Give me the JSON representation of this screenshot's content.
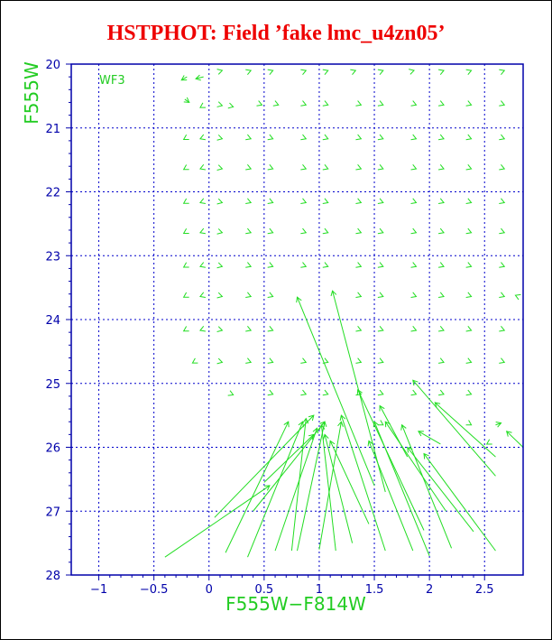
{
  "title": "HSTPHOT: Field ’fake lmc_u4zn05’",
  "colors": {
    "title": "#ee0000",
    "axis": "#0000aa",
    "label": "#22cc22",
    "vector": "#22dd22",
    "grid": "#0000cc"
  },
  "chart_data": {
    "type": "vector",
    "title": "HSTPHOT: Field ’fake lmc_u4zn05’",
    "annotation": "WF3",
    "xlabel": "F555W−F814W",
    "ylabel": "F555W",
    "xlim": [
      -1.25,
      2.85
    ],
    "ylim": [
      28,
      20
    ],
    "y_inverted": true,
    "grid": true,
    "x_ticks": [
      "−1",
      "−0.5",
      "0",
      "0.5",
      "1",
      "1.5",
      "2",
      "2.5"
    ],
    "x_tick_values": [
      -1,
      -0.5,
      0,
      0.5,
      1,
      1.5,
      2,
      2.5
    ],
    "y_ticks": [
      "20",
      "21",
      "22",
      "23",
      "24",
      "25",
      "26",
      "27",
      "28"
    ],
    "y_tick_values": [
      20,
      21,
      22,
      23,
      24,
      25,
      26,
      27,
      28
    ],
    "grid_x": [
      -1,
      -0.5,
      0,
      0.5,
      1,
      1.5,
      2,
      2.5
    ],
    "grid_y": [
      21,
      22,
      23,
      24,
      25,
      26,
      27
    ],
    "short_vectors": [
      [
        -0.2,
        20.2,
        -0.25,
        20.25
      ],
      [
        -0.05,
        20.2,
        -0.12,
        20.23
      ],
      [
        0.08,
        20.12,
        0.12,
        20.1
      ],
      [
        0.35,
        20.12,
        0.38,
        20.1
      ],
      [
        0.55,
        20.12,
        0.58,
        20.1
      ],
      [
        0.85,
        20.12,
        0.88,
        20.1
      ],
      [
        1.05,
        20.12,
        1.08,
        20.1
      ],
      [
        1.3,
        20.12,
        1.33,
        20.1
      ],
      [
        1.55,
        20.12,
        1.58,
        20.1
      ],
      [
        1.82,
        20.12,
        1.86,
        20.1
      ],
      [
        2.1,
        20.12,
        2.13,
        20.1
      ],
      [
        2.35,
        20.12,
        2.38,
        20.1
      ],
      [
        2.65,
        20.12,
        2.68,
        20.1
      ],
      [
        -0.22,
        20.55,
        -0.18,
        20.6
      ],
      [
        -0.05,
        20.65,
        -0.08,
        20.68
      ],
      [
        0.08,
        20.63,
        0.12,
        20.65
      ],
      [
        0.18,
        20.65,
        0.22,
        20.67
      ],
      [
        0.45,
        20.62,
        0.48,
        20.64
      ],
      [
        0.6,
        20.62,
        0.63,
        20.64
      ],
      [
        0.85,
        20.62,
        0.88,
        20.64
      ],
      [
        1.05,
        20.62,
        1.08,
        20.64
      ],
      [
        1.35,
        20.62,
        1.38,
        20.64
      ],
      [
        1.55,
        20.62,
        1.58,
        20.64
      ],
      [
        1.85,
        20.62,
        1.88,
        20.64
      ],
      [
        2.1,
        20.62,
        2.13,
        20.64
      ],
      [
        2.35,
        20.62,
        2.38,
        20.64
      ],
      [
        2.65,
        20.62,
        2.68,
        20.64
      ],
      [
        -0.2,
        21.15,
        -0.23,
        21.18
      ],
      [
        -0.05,
        21.15,
        -0.08,
        21.17
      ],
      [
        0.08,
        21.15,
        0.12,
        21.17
      ],
      [
        0.35,
        21.15,
        0.38,
        21.17
      ],
      [
        0.55,
        21.15,
        0.58,
        21.17
      ],
      [
        0.85,
        21.15,
        0.88,
        21.17
      ],
      [
        1.05,
        21.15,
        1.08,
        21.17
      ],
      [
        1.35,
        21.15,
        1.38,
        21.17
      ],
      [
        1.55,
        21.15,
        1.58,
        21.17
      ],
      [
        1.85,
        21.15,
        1.88,
        21.17
      ],
      [
        2.1,
        21.15,
        2.13,
        21.17
      ],
      [
        2.35,
        21.15,
        2.38,
        21.17
      ],
      [
        2.65,
        21.15,
        2.68,
        21.17
      ],
      [
        -0.2,
        21.62,
        -0.23,
        21.65
      ],
      [
        -0.05,
        21.62,
        -0.08,
        21.64
      ],
      [
        0.08,
        21.62,
        0.12,
        21.64
      ],
      [
        0.35,
        21.62,
        0.38,
        21.64
      ],
      [
        0.55,
        21.62,
        0.58,
        21.64
      ],
      [
        0.85,
        21.62,
        0.88,
        21.64
      ],
      [
        1.05,
        21.62,
        1.08,
        21.64
      ],
      [
        1.35,
        21.62,
        1.38,
        21.64
      ],
      [
        1.55,
        21.62,
        1.58,
        21.64
      ],
      [
        1.85,
        21.62,
        1.88,
        21.64
      ],
      [
        2.1,
        21.62,
        2.13,
        21.64
      ],
      [
        2.35,
        21.62,
        2.38,
        21.64
      ],
      [
        2.65,
        21.62,
        2.68,
        21.64
      ],
      [
        -0.2,
        22.15,
        -0.23,
        22.18
      ],
      [
        -0.05,
        22.15,
        -0.08,
        22.17
      ],
      [
        0.08,
        22.15,
        0.12,
        22.17
      ],
      [
        0.35,
        22.15,
        0.38,
        22.17
      ],
      [
        0.55,
        22.15,
        0.58,
        22.17
      ],
      [
        0.85,
        22.15,
        0.88,
        22.17
      ],
      [
        1.05,
        22.15,
        1.08,
        22.17
      ],
      [
        1.35,
        22.15,
        1.38,
        22.17
      ],
      [
        1.55,
        22.15,
        1.58,
        22.17
      ],
      [
        1.85,
        22.15,
        1.88,
        22.17
      ],
      [
        2.1,
        22.15,
        2.13,
        22.17
      ],
      [
        2.35,
        22.15,
        2.38,
        22.17
      ],
      [
        2.65,
        22.15,
        2.68,
        22.17
      ],
      [
        -0.2,
        22.62,
        -0.23,
        22.65
      ],
      [
        -0.05,
        22.62,
        -0.08,
        22.64
      ],
      [
        0.08,
        22.62,
        0.12,
        22.64
      ],
      [
        0.35,
        22.62,
        0.38,
        22.64
      ],
      [
        0.55,
        22.62,
        0.58,
        22.64
      ],
      [
        0.85,
        22.62,
        0.88,
        22.64
      ],
      [
        1.05,
        22.62,
        1.08,
        22.64
      ],
      [
        1.35,
        22.62,
        1.38,
        22.64
      ],
      [
        1.55,
        22.62,
        1.58,
        22.64
      ],
      [
        1.85,
        22.62,
        1.88,
        22.64
      ],
      [
        2.1,
        22.62,
        2.13,
        22.64
      ],
      [
        2.35,
        22.62,
        2.38,
        22.64
      ],
      [
        2.65,
        22.62,
        2.68,
        22.64
      ],
      [
        -0.2,
        23.15,
        -0.23,
        23.18
      ],
      [
        -0.05,
        23.15,
        -0.08,
        23.17
      ],
      [
        0.08,
        23.15,
        0.12,
        23.17
      ],
      [
        0.35,
        23.15,
        0.38,
        23.17
      ],
      [
        0.55,
        23.15,
        0.58,
        23.17
      ],
      [
        0.85,
        23.15,
        0.88,
        23.17
      ],
      [
        1.05,
        23.15,
        1.08,
        23.17
      ],
      [
        1.35,
        23.15,
        1.38,
        23.17
      ],
      [
        1.55,
        23.15,
        1.58,
        23.17
      ],
      [
        1.85,
        23.15,
        1.88,
        23.17
      ],
      [
        2.1,
        23.15,
        2.13,
        23.17
      ],
      [
        2.35,
        23.15,
        2.38,
        23.17
      ],
      [
        2.65,
        23.15,
        2.68,
        23.17
      ],
      [
        -0.2,
        23.62,
        -0.23,
        23.65
      ],
      [
        -0.05,
        23.62,
        -0.08,
        23.64
      ],
      [
        0.08,
        23.62,
        0.12,
        23.64
      ],
      [
        0.35,
        23.62,
        0.38,
        23.64
      ],
      [
        0.55,
        23.62,
        0.58,
        23.64
      ],
      [
        1.35,
        23.62,
        1.38,
        23.64
      ],
      [
        1.55,
        23.62,
        1.58,
        23.64
      ],
      [
        1.85,
        23.62,
        1.88,
        23.64
      ],
      [
        2.1,
        23.62,
        2.13,
        23.64
      ],
      [
        2.35,
        23.62,
        2.38,
        23.64
      ],
      [
        2.65,
        23.62,
        2.68,
        23.64
      ],
      [
        2.82,
        23.65,
        2.78,
        23.62
      ],
      [
        -0.2,
        24.15,
        -0.23,
        24.18
      ],
      [
        -0.05,
        24.15,
        -0.08,
        24.17
      ],
      [
        0.08,
        24.15,
        0.12,
        24.17
      ],
      [
        0.35,
        24.15,
        0.38,
        24.17
      ],
      [
        0.55,
        24.15,
        0.58,
        24.17
      ],
      [
        1.35,
        24.15,
        1.38,
        24.17
      ],
      [
        1.55,
        24.15,
        1.58,
        24.17
      ],
      [
        1.85,
        24.15,
        1.88,
        24.17
      ],
      [
        2.1,
        24.15,
        2.13,
        24.17
      ],
      [
        2.35,
        24.15,
        2.38,
        24.17
      ],
      [
        2.65,
        24.15,
        2.68,
        24.17
      ],
      [
        -0.12,
        24.65,
        -0.15,
        24.68
      ],
      [
        0.08,
        24.65,
        0.12,
        24.67
      ],
      [
        0.35,
        24.65,
        0.38,
        24.67
      ],
      [
        0.55,
        24.65,
        0.58,
        24.67
      ],
      [
        0.85,
        24.65,
        0.88,
        24.67
      ],
      [
        1.05,
        24.65,
        1.08,
        24.67
      ],
      [
        1.35,
        24.65,
        1.38,
        24.67
      ],
      [
        1.55,
        24.65,
        1.58,
        24.67
      ],
      [
        2.1,
        24.65,
        2.13,
        24.67
      ],
      [
        2.35,
        24.65,
        2.38,
        24.67
      ],
      [
        2.65,
        24.65,
        2.68,
        24.67
      ],
      [
        0.18,
        25.15,
        0.22,
        25.18
      ],
      [
        0.55,
        25.15,
        0.58,
        25.17
      ],
      [
        0.85,
        25.15,
        0.88,
        25.17
      ],
      [
        1.05,
        25.15,
        1.08,
        25.17
      ],
      [
        1.35,
        25.15,
        1.38,
        25.17
      ],
      [
        1.55,
        25.15,
        1.58,
        25.17
      ],
      [
        1.85,
        25.15,
        1.88,
        25.17
      ],
      [
        2.1,
        25.15,
        2.13,
        25.17
      ],
      [
        2.35,
        25.15,
        2.38,
        25.17
      ],
      [
        1.55,
        25.62,
        1.58,
        25.65
      ],
      [
        2.35,
        25.62,
        2.38,
        25.65
      ],
      [
        2.6,
        25.65,
        2.65,
        25.62
      ],
      [
        2.55,
        25.92,
        2.52,
        25.95
      ]
    ],
    "long_vectors": [
      [
        -0.4,
        27.72,
        0.55,
        26.6
      ],
      [
        0.15,
        27.65,
        0.72,
        25.6
      ],
      [
        0.35,
        27.72,
        0.85,
        25.6
      ],
      [
        0.6,
        27.62,
        0.98,
        25.7
      ],
      [
        0.8,
        27.62,
        1.05,
        25.6
      ],
      [
        1.0,
        27.6,
        1.2,
        25.6
      ],
      [
        0.75,
        27.62,
        0.88,
        25.55
      ],
      [
        1.15,
        27.62,
        1.02,
        25.65
      ],
      [
        1.3,
        27.5,
        1.05,
        25.8
      ],
      [
        1.45,
        27.2,
        1.1,
        25.9
      ],
      [
        1.6,
        27.62,
        1.2,
        25.5
      ],
      [
        1.85,
        27.62,
        1.45,
        25.9
      ],
      [
        2.0,
        27.7,
        1.5,
        25.6
      ],
      [
        2.2,
        27.58,
        1.75,
        25.65
      ],
      [
        2.4,
        27.32,
        1.8,
        26.0
      ],
      [
        2.6,
        27.62,
        1.95,
        26.1
      ],
      [
        2.15,
        27.0,
        1.6,
        25.6
      ],
      [
        0.05,
        27.1,
        0.95,
        25.5
      ],
      [
        0.5,
        26.55,
        0.95,
        25.8
      ],
      [
        0.4,
        27.0,
        1.05,
        25.6
      ],
      [
        1.5,
        26.6,
        0.8,
        23.65
      ],
      [
        1.6,
        26.7,
        1.12,
        23.55
      ],
      [
        1.95,
        27.3,
        1.35,
        25.1
      ],
      [
        2.6,
        26.45,
        1.85,
        24.95
      ],
      [
        2.6,
        26.15,
        2.05,
        25.3
      ],
      [
        1.8,
        26.15,
        1.55,
        25.35
      ],
      [
        2.1,
        25.95,
        1.9,
        25.75
      ],
      [
        2.85,
        26.0,
        2.7,
        25.75
      ]
    ]
  }
}
